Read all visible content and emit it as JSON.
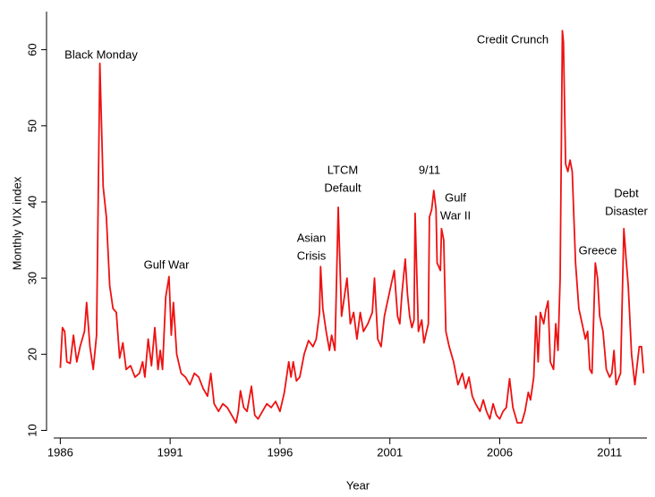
{
  "chart_data": {
    "type": "line",
    "x_label": "Year",
    "y_label": "Monthly VIX index",
    "annotations": [
      [
        "Black Monday"
      ],
      [
        "Gulf War"
      ],
      [
        "Asian",
        "Crisis"
      ],
      [
        "LTCM",
        "Default"
      ],
      [
        "9/11"
      ],
      [
        "Gulf",
        "War II"
      ],
      [
        "Credit Crunch"
      ],
      [
        "Greece"
      ],
      [
        "Debt",
        "Disaster"
      ]
    ],
    "xlim": [
      1985.7,
      2012.7
    ],
    "ylim": [
      9,
      65
    ],
    "xticks": [
      1986,
      1991,
      1996,
      2001,
      2006,
      2011
    ],
    "yticks": [
      10,
      20,
      30,
      40,
      50,
      60
    ],
    "grid": false,
    "x": [
      1986.0,
      1986.1,
      1986.2,
      1986.3,
      1986.45,
      1986.6,
      1986.75,
      1986.9,
      1987.1,
      1987.2,
      1987.35,
      1987.5,
      1987.65,
      1987.8,
      1987.95,
      1988.1,
      1988.25,
      1988.4,
      1988.55,
      1988.7,
      1988.85,
      1989.0,
      1989.2,
      1989.4,
      1989.6,
      1989.75,
      1989.85,
      1990.0,
      1990.15,
      1990.3,
      1990.45,
      1990.55,
      1990.65,
      1990.8,
      1990.95,
      1991.05,
      1991.15,
      1991.3,
      1991.5,
      1991.7,
      1991.9,
      1992.1,
      1992.3,
      1992.5,
      1992.7,
      1992.85,
      1993.0,
      1993.2,
      1993.4,
      1993.6,
      1993.8,
      1994.0,
      1994.1,
      1994.2,
      1994.35,
      1994.5,
      1994.7,
      1994.85,
      1995.0,
      1995.2,
      1995.4,
      1995.6,
      1995.8,
      1996.0,
      1996.2,
      1996.4,
      1996.5,
      1996.6,
      1996.75,
      1996.9,
      1997.1,
      1997.3,
      1997.5,
      1997.65,
      1997.8,
      1997.85,
      1997.95,
      1998.1,
      1998.25,
      1998.35,
      1998.5,
      1998.65,
      1998.8,
      1998.95,
      1999.05,
      1999.2,
      1999.35,
      1999.5,
      1999.65,
      1999.8,
      2000.0,
      2000.2,
      2000.3,
      2000.45,
      2000.6,
      2000.75,
      2000.9,
      2001.05,
      2001.2,
      2001.35,
      2001.45,
      2001.55,
      2001.7,
      2001.8,
      2001.9,
      2002.0,
      2002.1,
      2002.15,
      2002.3,
      2002.45,
      2002.55,
      2002.75,
      2002.8,
      2002.9,
      2003.0,
      2003.1,
      2003.15,
      2003.3,
      2003.35,
      2003.45,
      2003.55,
      2003.7,
      2003.9,
      2004.1,
      2004.3,
      2004.45,
      2004.6,
      2004.75,
      2004.9,
      2005.1,
      2005.25,
      2005.4,
      2005.55,
      2005.7,
      2005.85,
      2006.0,
      2006.15,
      2006.3,
      2006.45,
      2006.6,
      2006.8,
      2007.0,
      2007.15,
      2007.3,
      2007.4,
      2007.55,
      2007.65,
      2007.75,
      2007.85,
      2008.0,
      2008.1,
      2008.2,
      2008.3,
      2008.45,
      2008.55,
      2008.65,
      2008.75,
      2008.85,
      2008.9,
      2009.0,
      2009.1,
      2009.2,
      2009.3,
      2009.45,
      2009.6,
      2009.75,
      2009.9,
      2010.0,
      2010.1,
      2010.2,
      2010.35,
      2010.45,
      2010.55,
      2010.7,
      2010.85,
      2011.0,
      2011.1,
      2011.2,
      2011.3,
      2011.5,
      2011.65,
      2011.75,
      2011.85,
      2012.0,
      2012.15,
      2012.35,
      2012.45,
      2012.55
    ],
    "series": [
      {
        "color": "#ee1111",
        "values": [
          18.2,
          23.5,
          23,
          19,
          18.8,
          22.5,
          19,
          21,
          23,
          26.8,
          21,
          18,
          22.5,
          58.2,
          42,
          38,
          29,
          26,
          25.5,
          19.5,
          21.5,
          18,
          18.5,
          17,
          17.5,
          19,
          17,
          22,
          18.5,
          23.5,
          18,
          20.5,
          18,
          27.5,
          30.2,
          22.5,
          26.8,
          20,
          17.5,
          17,
          16,
          17.5,
          17,
          15.5,
          14.5,
          17.5,
          13.5,
          12.5,
          13.5,
          13,
          12,
          11,
          12.5,
          15.2,
          13,
          12.5,
          15.8,
          12,
          11.5,
          12.5,
          13.5,
          13,
          13.8,
          12.5,
          15,
          19,
          17,
          19,
          16.5,
          17,
          20,
          21.8,
          21,
          22,
          25.5,
          31.5,
          26,
          23,
          20.5,
          22.5,
          20.5,
          39.3,
          25,
          28,
          30,
          24,
          25.5,
          22,
          25.5,
          23,
          24,
          25.5,
          30,
          22,
          21,
          25,
          27,
          29,
          31,
          25,
          24,
          28,
          32.5,
          28,
          25,
          23.5,
          24.5,
          38.5,
          23,
          24.5,
          21.5,
          24,
          38,
          39,
          41.5,
          39,
          32,
          31,
          36.5,
          35,
          23,
          21,
          19,
          16,
          17.5,
          15.5,
          17,
          14.5,
          13.5,
          12.5,
          14,
          12.5,
          11.5,
          13.5,
          12,
          11.5,
          12.5,
          13,
          16.8,
          13,
          11,
          11,
          12.5,
          15,
          14,
          17,
          25,
          19,
          25.5,
          24,
          25.8,
          27,
          19,
          18,
          24,
          20.5,
          30,
          62.5,
          61,
          45,
          44,
          45.5,
          44,
          32,
          26,
          24,
          22,
          23,
          18,
          17.5,
          32,
          30,
          25,
          23,
          18,
          17,
          17.5,
          20.5,
          16,
          17.5,
          36.5,
          32.5,
          29,
          20,
          16,
          21,
          21,
          17.5
        ]
      }
    ]
  }
}
